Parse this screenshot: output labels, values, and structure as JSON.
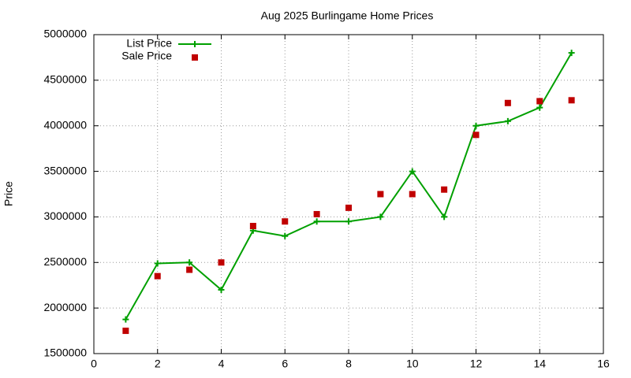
{
  "chart_data": {
    "type": "line",
    "title": "Aug 2025 Burlingame Home Prices",
    "y_label": "Price",
    "x": [
      1,
      2,
      3,
      4,
      5,
      6,
      7,
      8,
      9,
      10,
      11,
      12,
      13,
      14,
      15
    ],
    "series": [
      {
        "name": "List Price",
        "color": "#00a000",
        "style": "linespoints",
        "values": [
          1875000,
          2490000,
          2500000,
          2200000,
          2850000,
          2790000,
          2950000,
          2950000,
          3000000,
          3500000,
          3000000,
          4000000,
          4050000,
          4200000,
          4800000
        ]
      },
      {
        "name": "Sale Price",
        "color": "#c00000",
        "style": "points",
        "values": [
          1750000,
          2350000,
          2420000,
          2500000,
          2900000,
          2950000,
          3030000,
          3100000,
          3250000,
          3250000,
          3300000,
          3900000,
          4250000,
          4270000,
          4280000
        ]
      }
    ],
    "xlim": [
      0,
      16
    ],
    "xticks": [
      0,
      2,
      4,
      6,
      8,
      10,
      12,
      14,
      16
    ],
    "ylim": [
      1500000,
      5000000
    ],
    "yticks": [
      1500000,
      2000000,
      2500000,
      3000000,
      3500000,
      4000000,
      4500000,
      5000000
    ],
    "grid": true,
    "legend_position": "top-left"
  }
}
